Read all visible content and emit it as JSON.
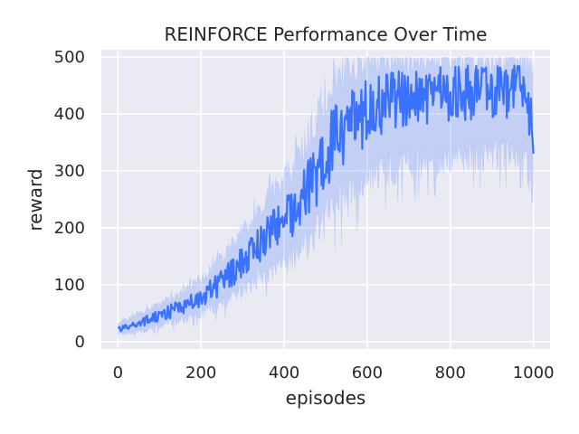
{
  "chart_data": {
    "type": "line",
    "title": "REINFORCE Performance Over Time",
    "xlabel": "episodes",
    "ylabel": "reward",
    "xlim": [
      -40,
      1040
    ],
    "ylim": [
      -13,
      513
    ],
    "x_ticks": [
      0,
      200,
      400,
      600,
      800,
      1000
    ],
    "x_tick_labels": [
      "0",
      "200",
      "400",
      "600",
      "800",
      "1000"
    ],
    "y_ticks": [
      0,
      100,
      200,
      300,
      400,
      500
    ],
    "y_tick_labels": [
      "0",
      "100",
      "200",
      "300",
      "400",
      "500"
    ],
    "grid": true,
    "legend": "none",
    "series": [
      {
        "x": [
          0,
          25,
          50,
          75,
          100,
          125,
          150,
          175,
          200,
          225,
          250,
          275,
          300,
          325,
          350,
          375,
          400,
          425,
          450,
          475,
          500,
          525,
          550,
          575,
          600,
          625,
          650,
          675,
          700,
          725,
          750,
          775,
          800,
          825,
          850,
          875,
          900,
          925,
          950,
          975,
          1000
        ],
        "mean": [
          22,
          26,
          32,
          38,
          45,
          53,
          60,
          68,
          78,
          90,
          104,
          122,
          142,
          160,
          178,
          198,
          215,
          232,
          262,
          290,
          332,
          356,
          370,
          388,
          405,
          416,
          422,
          426,
          428,
          430,
          432,
          434,
          436,
          437,
          438,
          438,
          438,
          439,
          440,
          440,
          380
        ],
        "lower": [
          12,
          14,
          18,
          22,
          28,
          32,
          38,
          42,
          50,
          58,
          66,
          78,
          92,
          105,
          118,
          130,
          140,
          150,
          168,
          186,
          215,
          236,
          250,
          270,
          290,
          300,
          305,
          310,
          312,
          314,
          318,
          320,
          322,
          324,
          326,
          326,
          328,
          328,
          330,
          330,
          260
        ],
        "upper": [
          34,
          40,
          48,
          56,
          66,
          76,
          86,
          98,
          112,
          128,
          146,
          170,
          196,
          218,
          240,
          264,
          288,
          312,
          348,
          392,
          440,
          468,
          480,
          490,
          496,
          500,
          500,
          500,
          500,
          500,
          500,
          500,
          500,
          500,
          500,
          500,
          500,
          500,
          500,
          500,
          480
        ]
      }
    ]
  }
}
